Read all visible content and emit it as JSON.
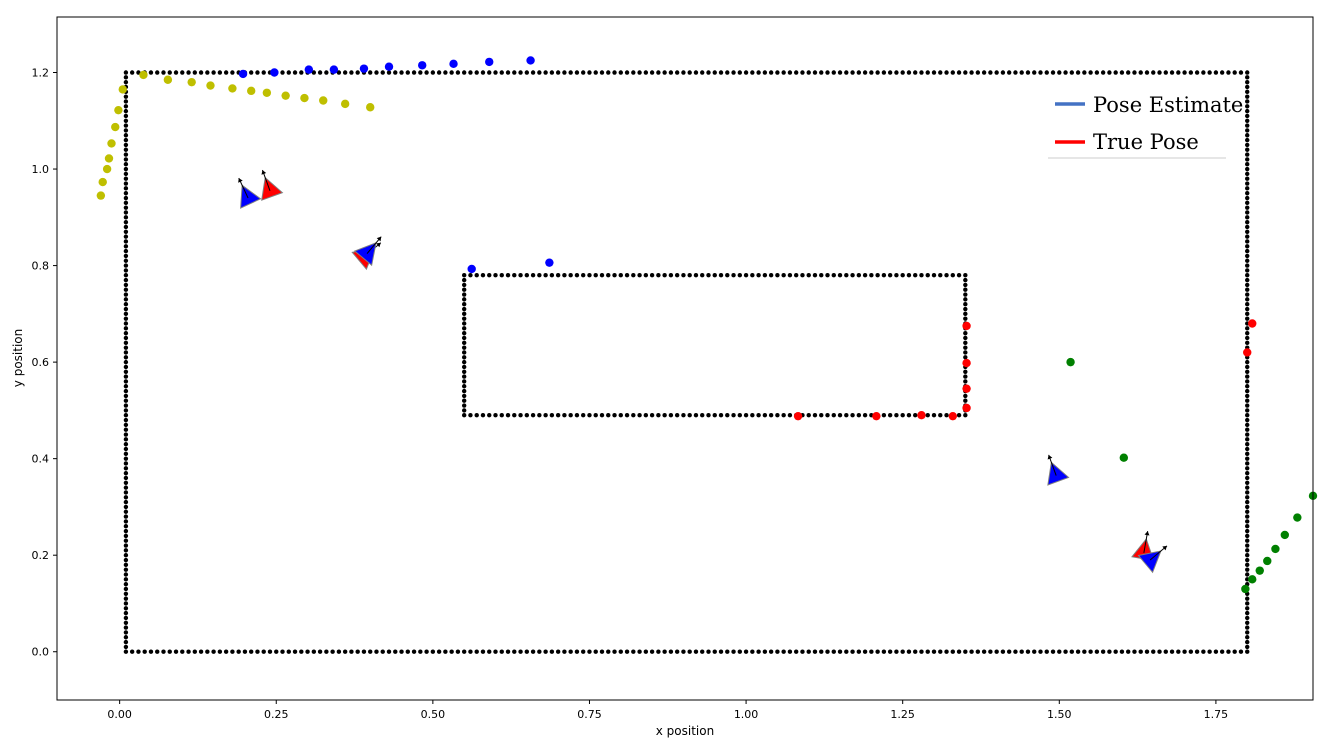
{
  "chart_data": {
    "type": "scatter",
    "title": "",
    "xlabel": "x position",
    "ylabel": "y position",
    "xlim": [
      -0.1,
      1.905
    ],
    "ylim": [
      -0.1,
      1.315
    ],
    "xticks": [
      0.0,
      0.25,
      0.5,
      0.75,
      1.0,
      1.25,
      1.5,
      1.75
    ],
    "yticks": [
      0.0,
      0.2,
      0.4,
      0.6,
      0.8,
      1.0,
      1.2
    ],
    "xtick_labels": [
      "0.00",
      "0.25",
      "0.50",
      "0.75",
      "1.00",
      "1.25",
      "1.50",
      "1.75"
    ],
    "ytick_labels": [
      "0.0",
      "0.2",
      "0.4",
      "0.6",
      "0.8",
      "1.0",
      "1.2"
    ],
    "grid": false,
    "legend": {
      "placement": "top-right",
      "entries": [
        {
          "label": "Pose Estimate",
          "color": "#4472c4"
        },
        {
          "label": "True Pose",
          "color": "#ff0000"
        }
      ]
    },
    "walls": [
      {
        "name": "outer-wall",
        "x0": 0.01,
        "y0": 0.0,
        "x1": 1.8,
        "y1": 1.2,
        "spacing": 0.01,
        "color": "#000000"
      },
      {
        "name": "inner-wall",
        "x0": 0.55,
        "y0": 0.49,
        "x1": 1.35,
        "y1": 0.78,
        "spacing": 0.01,
        "color": "#000000"
      }
    ],
    "series": [
      {
        "color": "#bfbf00",
        "points": [
          [
            -0.03,
            0.945
          ],
          [
            -0.027,
            0.973
          ],
          [
            -0.02,
            1.0
          ],
          [
            -0.017,
            1.022
          ],
          [
            -0.013,
            1.053
          ],
          [
            -0.007,
            1.087
          ],
          [
            -0.002,
            1.122
          ],
          [
            0.005,
            1.165
          ],
          [
            0.038,
            1.195
          ],
          [
            0.077,
            1.185
          ],
          [
            0.115,
            1.18
          ],
          [
            0.145,
            1.173
          ],
          [
            0.18,
            1.167
          ],
          [
            0.21,
            1.162
          ],
          [
            0.235,
            1.158
          ],
          [
            0.265,
            1.152
          ],
          [
            0.295,
            1.147
          ],
          [
            0.325,
            1.142
          ],
          [
            0.36,
            1.135
          ],
          [
            0.4,
            1.128
          ]
        ]
      },
      {
        "color": "#0000ff",
        "points": [
          [
            0.197,
            1.197
          ],
          [
            0.247,
            1.2
          ],
          [
            0.302,
            1.206
          ],
          [
            0.342,
            1.206
          ],
          [
            0.39,
            1.208
          ],
          [
            0.43,
            1.212
          ],
          [
            0.483,
            1.215
          ],
          [
            0.533,
            1.218
          ],
          [
            0.59,
            1.222
          ],
          [
            0.656,
            1.225
          ],
          [
            0.562,
            0.793
          ],
          [
            0.686,
            0.806
          ]
        ]
      },
      {
        "color": "#ff0000",
        "points": [
          [
            1.083,
            0.488
          ],
          [
            1.208,
            0.488
          ],
          [
            1.28,
            0.49
          ],
          [
            1.33,
            0.488
          ],
          [
            1.352,
            0.505
          ],
          [
            1.352,
            0.545
          ],
          [
            1.352,
            0.598
          ],
          [
            1.352,
            0.675
          ],
          [
            1.8,
            0.62
          ],
          [
            1.808,
            0.68
          ]
        ]
      },
      {
        "color": "#008000",
        "points": [
          [
            1.518,
            0.6
          ],
          [
            1.603,
            0.402
          ],
          [
            1.797,
            0.13
          ],
          [
            1.808,
            0.15
          ],
          [
            1.82,
            0.168
          ],
          [
            1.832,
            0.188
          ],
          [
            1.845,
            0.213
          ],
          [
            1.86,
            0.242
          ],
          [
            1.88,
            0.278
          ],
          [
            1.905,
            0.323
          ]
        ]
      }
    ],
    "poses": [
      {
        "x": 0.205,
        "y": 0.94,
        "heading_deg": 115,
        "fill": "#0000ff"
      },
      {
        "x": 0.24,
        "y": 0.955,
        "heading_deg": 110,
        "fill": "#ff0000"
      },
      {
        "x": 0.39,
        "y": 0.818,
        "heading_deg": 40,
        "fill": "#ff0000"
      },
      {
        "x": 0.395,
        "y": 0.825,
        "heading_deg": 50,
        "fill": "#0000ff"
      },
      {
        "x": 1.495,
        "y": 0.365,
        "heading_deg": 110,
        "fill": "#0000ff"
      },
      {
        "x": 1.635,
        "y": 0.205,
        "heading_deg": 80,
        "fill": "#ff0000"
      },
      {
        "x": 1.645,
        "y": 0.19,
        "heading_deg": 40,
        "fill": "#0000ff"
      }
    ]
  }
}
